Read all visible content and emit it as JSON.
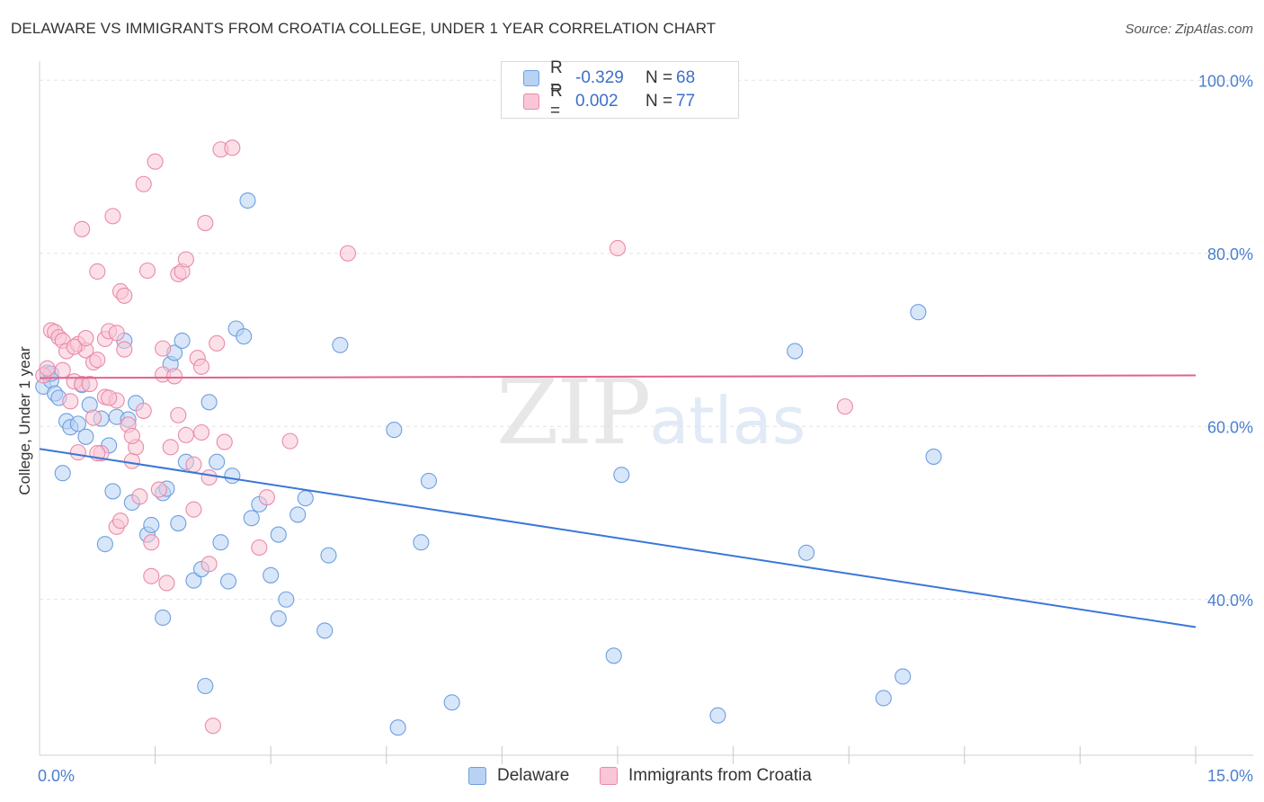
{
  "title": "DELAWARE VS IMMIGRANTS FROM CROATIA COLLEGE, UNDER 1 YEAR CORRELATION CHART",
  "source": "Source: ZipAtlas.com",
  "watermark": {
    "zip": "ZIP",
    "atlas": "atlas"
  },
  "legend": {
    "r_label": "R =",
    "n_label": "N =",
    "rows": [
      {
        "name": "Delaware",
        "r": "-0.329",
        "n": "68",
        "fill": "#b8d2f4",
        "stroke": "#6e9fe0"
      },
      {
        "name": "Immigrants from Croatia",
        "r": "0.002",
        "n": "77",
        "fill": "#f9c6d6",
        "stroke": "#e98aaa"
      }
    ]
  },
  "chart_data": {
    "type": "scatter",
    "title": "DELAWARE VS IMMIGRANTS FROM CROATIA COLLEGE, UNDER 1 YEAR CORRELATION CHART",
    "xlabel": "",
    "ylabel": "College, Under 1 year",
    "xlim": [
      0,
      15
    ],
    "ylim": [
      22,
      102
    ],
    "x_tick_labels": [
      {
        "value": 0,
        "label": "0.0%"
      },
      {
        "value": 15,
        "label": "15.0%"
      }
    ],
    "y_tick_labels": [
      {
        "value": 100,
        "label": "100.0%"
      },
      {
        "value": 80,
        "label": "80.0%"
      },
      {
        "value": 60,
        "label": "60.0%"
      },
      {
        "value": 40,
        "label": "40.0%"
      }
    ],
    "x_minor_ticks": [
      1.5,
      3.0,
      4.5,
      6.0,
      7.5,
      9.0,
      10.5,
      12.0,
      13.5,
      15.0
    ],
    "grid": true,
    "series": [
      {
        "name": "Delaware",
        "color": "#6e9fe0",
        "fill": "#b8d2f4",
        "trend": {
          "x": [
            0,
            15
          ],
          "y": [
            57.4,
            36.8
          ],
          "color": "#3a77d6"
        },
        "points": [
          [
            0.05,
            64.6
          ],
          [
            0.1,
            66.2
          ],
          [
            0.15,
            65.3
          ],
          [
            0.2,
            63.8
          ],
          [
            0.25,
            63.3
          ],
          [
            0.3,
            54.6
          ],
          [
            0.35,
            60.6
          ],
          [
            0.4,
            59.9
          ],
          [
            0.5,
            60.3
          ],
          [
            0.55,
            64.8
          ],
          [
            0.6,
            58.8
          ],
          [
            0.65,
            62.5
          ],
          [
            0.8,
            60.9
          ],
          [
            0.85,
            46.4
          ],
          [
            0.9,
            57.8
          ],
          [
            0.95,
            52.5
          ],
          [
            1.0,
            61.1
          ],
          [
            1.1,
            69.9
          ],
          [
            1.15,
            60.8
          ],
          [
            1.2,
            51.2
          ],
          [
            1.25,
            62.7
          ],
          [
            1.4,
            47.5
          ],
          [
            1.45,
            48.6
          ],
          [
            1.6,
            52.3
          ],
          [
            1.6,
            37.9
          ],
          [
            1.65,
            52.8
          ],
          [
            1.7,
            67.2
          ],
          [
            1.75,
            68.5
          ],
          [
            1.8,
            48.8
          ],
          [
            1.85,
            69.9
          ],
          [
            1.9,
            55.9
          ],
          [
            2.0,
            42.2
          ],
          [
            2.1,
            43.5
          ],
          [
            2.2,
            62.8
          ],
          [
            2.15,
            30.0
          ],
          [
            2.3,
            55.9
          ],
          [
            2.35,
            46.6
          ],
          [
            2.45,
            42.1
          ],
          [
            2.5,
            54.3
          ],
          [
            2.55,
            71.3
          ],
          [
            2.65,
            70.4
          ],
          [
            2.7,
            86.1
          ],
          [
            2.75,
            49.4
          ],
          [
            2.85,
            51.0
          ],
          [
            3.0,
            42.8
          ],
          [
            3.1,
            47.5
          ],
          [
            3.1,
            37.8
          ],
          [
            3.2,
            40.0
          ],
          [
            3.35,
            49.8
          ],
          [
            3.45,
            51.7
          ],
          [
            3.7,
            36.4
          ],
          [
            3.75,
            45.1
          ],
          [
            3.9,
            69.4
          ],
          [
            4.6,
            59.6
          ],
          [
            4.65,
            25.2
          ],
          [
            4.95,
            46.6
          ],
          [
            5.05,
            53.7
          ],
          [
            5.35,
            28.1
          ],
          [
            7.45,
            33.5
          ],
          [
            7.55,
            54.4
          ],
          [
            8.8,
            26.6
          ],
          [
            9.8,
            68.7
          ],
          [
            9.95,
            45.4
          ],
          [
            10.95,
            28.6
          ],
          [
            11.2,
            31.1
          ],
          [
            11.4,
            73.2
          ],
          [
            11.6,
            56.5
          ],
          [
            0.15,
            66.1
          ]
        ]
      },
      {
        "name": "Immigrants from Croatia",
        "color": "#e98aaa",
        "fill": "#f9c6d6",
        "trend": {
          "x": [
            0,
            15
          ],
          "y": [
            65.6,
            65.9
          ],
          "color": "#e0638d"
        },
        "points": [
          [
            0.05,
            65.9
          ],
          [
            0.1,
            66.7
          ],
          [
            0.15,
            71.1
          ],
          [
            0.2,
            70.9
          ],
          [
            0.25,
            70.3
          ],
          [
            0.3,
            66.5
          ],
          [
            0.3,
            69.9
          ],
          [
            0.35,
            68.7
          ],
          [
            0.4,
            62.9
          ],
          [
            0.45,
            65.2
          ],
          [
            0.5,
            69.5
          ],
          [
            0.5,
            57.0
          ],
          [
            0.55,
            64.9
          ],
          [
            0.55,
            82.8
          ],
          [
            0.6,
            68.8
          ],
          [
            0.65,
            64.9
          ],
          [
            0.7,
            67.4
          ],
          [
            0.7,
            61.0
          ],
          [
            0.75,
            67.7
          ],
          [
            0.75,
            77.9
          ],
          [
            0.8,
            56.9
          ],
          [
            0.85,
            70.1
          ],
          [
            0.9,
            71.0
          ],
          [
            0.95,
            84.3
          ],
          [
            1.0,
            70.8
          ],
          [
            1.0,
            48.4
          ],
          [
            1.05,
            49.1
          ],
          [
            1.05,
            75.6
          ],
          [
            1.1,
            68.9
          ],
          [
            1.1,
            75.1
          ],
          [
            1.15,
            60.2
          ],
          [
            1.2,
            56.0
          ],
          [
            1.25,
            57.6
          ],
          [
            1.3,
            51.9
          ],
          [
            1.35,
            88.0
          ],
          [
            1.4,
            78.0
          ],
          [
            1.45,
            46.6
          ],
          [
            1.45,
            42.7
          ],
          [
            1.5,
            90.6
          ],
          [
            1.55,
            52.7
          ],
          [
            1.6,
            66.0
          ],
          [
            1.6,
            69.0
          ],
          [
            1.65,
            41.9
          ],
          [
            1.7,
            57.6
          ],
          [
            1.75,
            65.8
          ],
          [
            1.8,
            77.6
          ],
          [
            1.85,
            77.9
          ],
          [
            1.9,
            79.3
          ],
          [
            1.9,
            59.0
          ],
          [
            2.0,
            50.4
          ],
          [
            2.0,
            55.6
          ],
          [
            2.05,
            67.9
          ],
          [
            2.1,
            66.9
          ],
          [
            2.1,
            59.3
          ],
          [
            2.15,
            83.5
          ],
          [
            2.2,
            54.1
          ],
          [
            2.2,
            44.1
          ],
          [
            2.25,
            25.4
          ],
          [
            2.3,
            69.6
          ],
          [
            2.35,
            92.0
          ],
          [
            2.5,
            92.2
          ],
          [
            2.85,
            46.0
          ],
          [
            2.95,
            51.8
          ],
          [
            3.25,
            58.3
          ],
          [
            4.0,
            80.0
          ],
          [
            7.5,
            80.6
          ],
          [
            10.45,
            62.3
          ],
          [
            0.85,
            63.4
          ],
          [
            1.0,
            63.0
          ],
          [
            1.2,
            58.9
          ],
          [
            1.35,
            61.8
          ],
          [
            0.45,
            69.2
          ],
          [
            0.6,
            70.2
          ],
          [
            0.75,
            56.9
          ],
          [
            0.9,
            63.3
          ],
          [
            2.4,
            58.2
          ],
          [
            1.8,
            61.3
          ]
        ]
      }
    ]
  }
}
